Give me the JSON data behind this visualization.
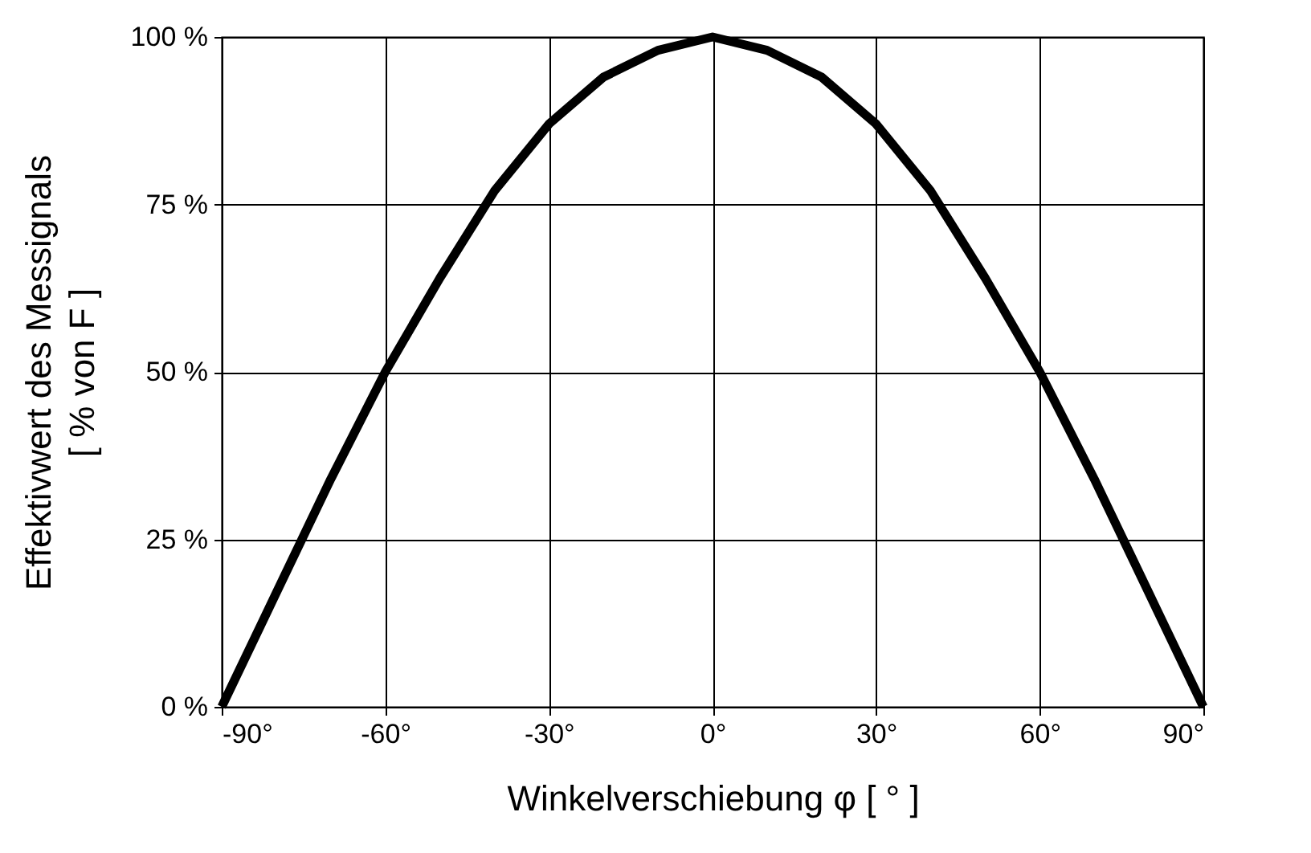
{
  "chart_data": {
    "type": "line",
    "xlabel": "Winkelverschiebung φ [ ° ]",
    "ylabel": "Effektivwert des Messignals\n[ % von F ]",
    "x": [
      -90,
      -80,
      -70,
      -60,
      -50,
      -40,
      -30,
      -20,
      -10,
      0,
      10,
      20,
      30,
      40,
      50,
      60,
      70,
      80,
      90
    ],
    "series": [
      {
        "color": "#000000",
        "values": [
          0,
          17,
          34,
          50,
          64,
          77,
          87,
          94,
          98,
          100,
          98,
          94,
          87,
          77,
          64,
          50,
          34,
          17,
          0
        ]
      }
    ],
    "xlim": [
      -90,
      90
    ],
    "ylim": [
      0,
      100
    ],
    "xticks": [
      {
        "value": -90,
        "label": "-90°"
      },
      {
        "value": -60,
        "label": "-60°"
      },
      {
        "value": -30,
        "label": "-30°"
      },
      {
        "value": 0,
        "label": "0°"
      },
      {
        "value": 30,
        "label": "30°"
      },
      {
        "value": 60,
        "label": "60°"
      },
      {
        "value": 90,
        "label": "90°"
      }
    ],
    "yticks": [
      {
        "value": 0,
        "label": "0 %"
      },
      {
        "value": 25,
        "label": "25 %"
      },
      {
        "value": 50,
        "label": "50 %"
      },
      {
        "value": 75,
        "label": "75 %"
      },
      {
        "value": 100,
        "label": "100 %"
      }
    ],
    "grid": true,
    "legend": false
  }
}
